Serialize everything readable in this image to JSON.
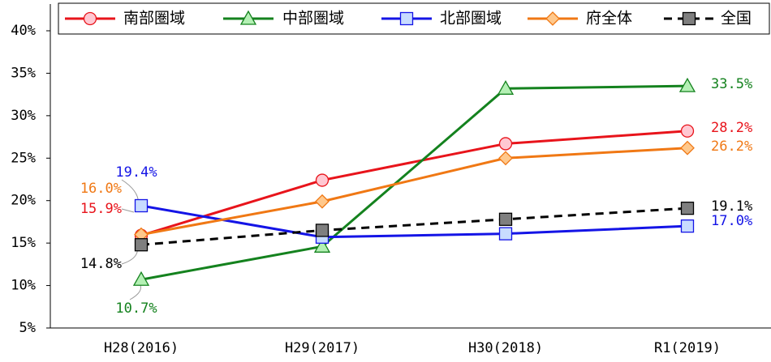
{
  "chart_data": {
    "type": "line",
    "categories": [
      "H28(2016)",
      "H29(2017)",
      "H30(2018)",
      "R1(2019)"
    ],
    "ylim": [
      5,
      40
    ],
    "yticks": [
      {
        "value": 5,
        "label": "5%"
      },
      {
        "value": 10,
        "label": "10%"
      },
      {
        "value": 15,
        "label": "15%"
      },
      {
        "value": 20,
        "label": "20%"
      },
      {
        "value": 25,
        "label": "25%"
      },
      {
        "value": 30,
        "label": "30%"
      },
      {
        "value": 35,
        "label": "35%"
      },
      {
        "value": 40,
        "label": "40%"
      }
    ],
    "legend": "top",
    "series": [
      {
        "name": "南部圏域",
        "color": "#e8141b",
        "marker": "circle",
        "values": [
          15.9,
          22.4,
          26.7,
          28.2
        ],
        "value_labels": [
          "15.9%",
          null,
          null,
          "28.2%"
        ]
      },
      {
        "name": "中部圏域",
        "color": "#14821e",
        "marker": "triangle",
        "values": [
          10.7,
          14.6,
          33.2,
          33.5
        ],
        "value_labels": [
          "10.7%",
          null,
          null,
          "33.5%"
        ]
      },
      {
        "name": "北部圏域",
        "color": "#1414e6",
        "marker": "square",
        "values": [
          19.4,
          15.7,
          16.1,
          17.0
        ],
        "value_labels": [
          "19.4%",
          null,
          null,
          "17.0%"
        ]
      },
      {
        "name": "府全体",
        "color": "#f07814",
        "marker": "diamond",
        "values": [
          16.0,
          19.9,
          25.0,
          26.2
        ],
        "value_labels": [
          "16.0%",
          null,
          null,
          "26.2%"
        ]
      },
      {
        "name": "全国",
        "color": "#000000",
        "marker": "square",
        "dashed": true,
        "values": [
          14.8,
          16.5,
          17.8,
          19.1
        ],
        "value_labels": [
          "14.8%",
          null,
          null,
          "19.1%"
        ]
      }
    ]
  }
}
